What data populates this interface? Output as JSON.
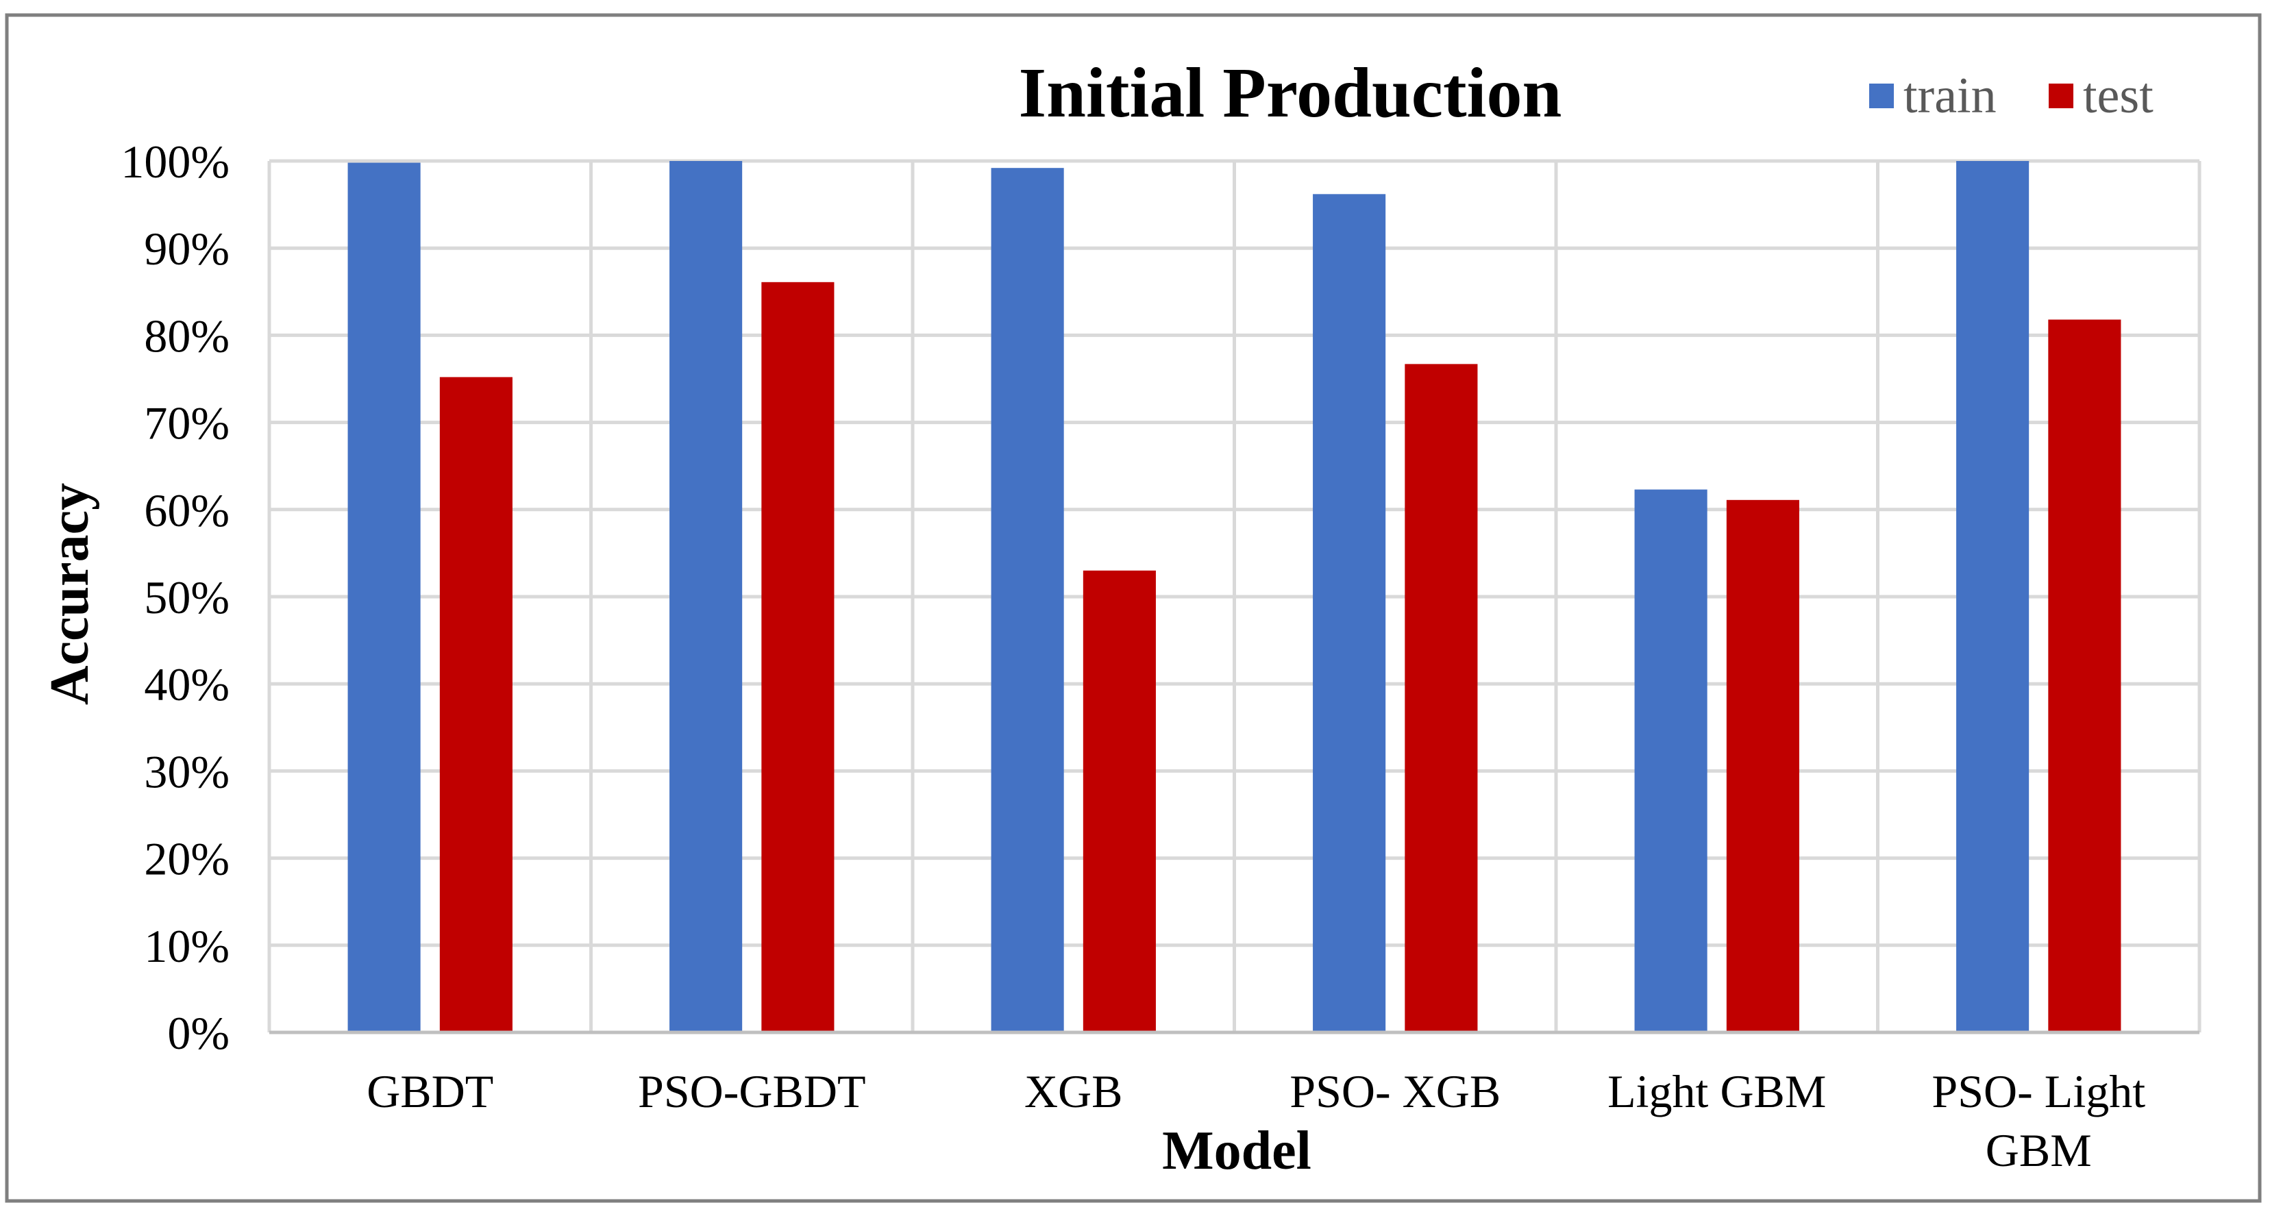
{
  "chart_data": {
    "type": "bar",
    "title": "Initial Production",
    "xlabel": "Model",
    "ylabel": "Accuracy",
    "categories": [
      "GBDT",
      "PSO-GBDT",
      "XGB",
      "PSO- XGB",
      "Light GBM",
      "PSO- Light GBM"
    ],
    "category_lines": [
      [
        "GBDT"
      ],
      [
        "PSO-GBDT"
      ],
      [
        "XGB"
      ],
      [
        "PSO- XGB"
      ],
      [
        "Light GBM"
      ],
      [
        "PSO- Light",
        "GBM"
      ]
    ],
    "series": [
      {
        "name": "train",
        "color": "#4472C4",
        "values": [
          99.8,
          100,
          99.2,
          96.2,
          62.3,
          100
        ]
      },
      {
        "name": "test",
        "color": "#C00000",
        "values": [
          75.2,
          86.1,
          53.0,
          76.7,
          61.1,
          81.8
        ]
      }
    ],
    "ylim": [
      0,
      100
    ],
    "yticks": [
      0,
      10,
      20,
      30,
      40,
      50,
      60,
      70,
      80,
      90,
      100
    ],
    "ytick_labels": [
      "0%",
      "10%",
      "20%",
      "30%",
      "40%",
      "50%",
      "60%",
      "70%",
      "80%",
      "90%",
      "100%"
    ],
    "grid": true,
    "legend_position": "top-right"
  }
}
